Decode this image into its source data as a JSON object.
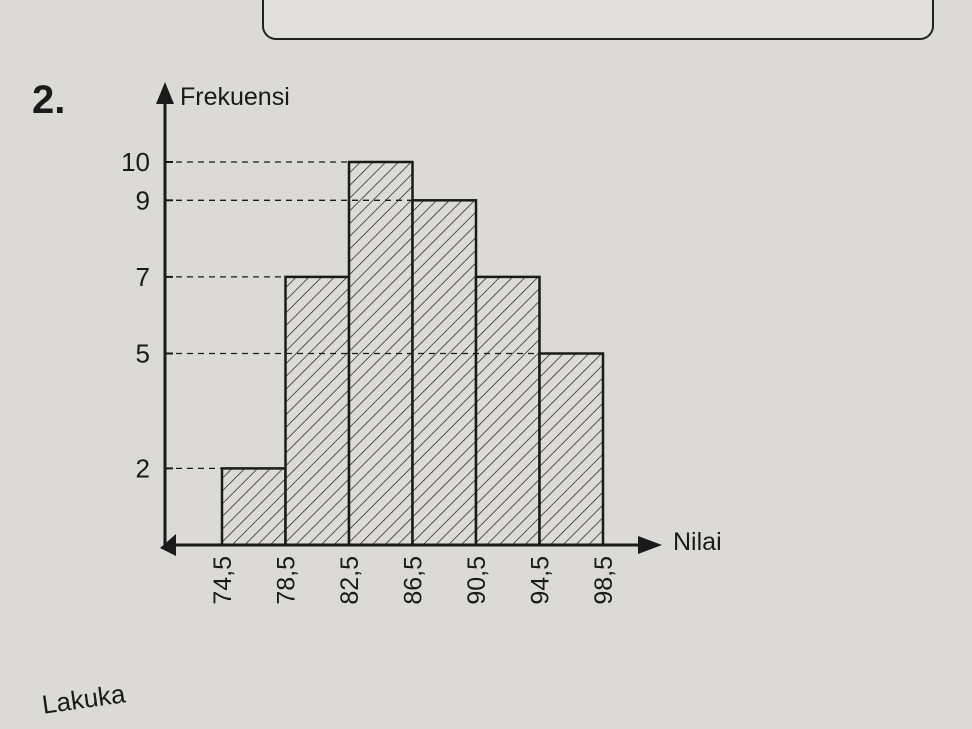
{
  "problem": {
    "number": "2.",
    "footer_text": "Lakuka"
  },
  "chart_data": {
    "type": "bar",
    "title": "",
    "xlabel": "Nilai",
    "ylabel": "Frekuensi",
    "x_ticks": [
      "74,5",
      "78,5",
      "82,5",
      "86,5",
      "90,5",
      "94,5",
      "98,5"
    ],
    "y_ticks": [
      "2",
      "5",
      "7",
      "9",
      "10"
    ],
    "bins": [
      {
        "from": "74,5",
        "to": "78,5",
        "frequency": 2
      },
      {
        "from": "78,5",
        "to": "82,5",
        "frequency": 7
      },
      {
        "from": "82,5",
        "to": "86,5",
        "frequency": 10
      },
      {
        "from": "86,5",
        "to": "90,5",
        "frequency": 9
      },
      {
        "from": "90,5",
        "to": "94,5",
        "frequency": 7
      },
      {
        "from": "94,5",
        "to": "98,5",
        "frequency": 5
      }
    ],
    "ylim": [
      0,
      10
    ],
    "grid": false,
    "bar_fill": "hatched",
    "colors": {
      "ink": "#1a1a1a",
      "bar_background": "#dddbd7"
    }
  }
}
